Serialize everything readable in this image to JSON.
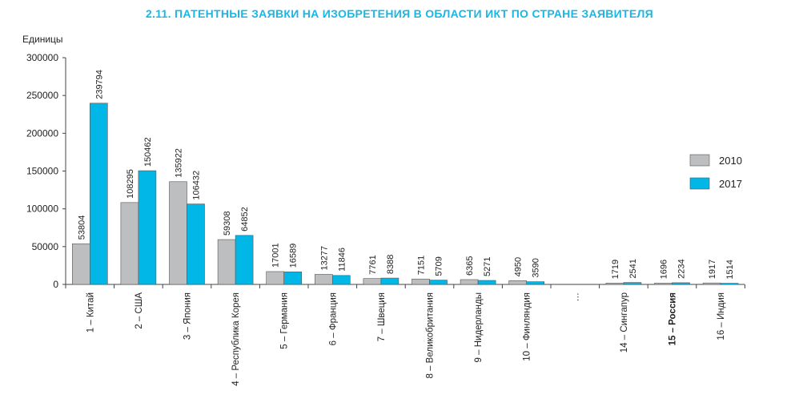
{
  "chart_data": {
    "type": "bar",
    "title": "2.11. ПАТЕНТНЫЕ ЗАЯВКИ НА ИЗОБРЕТЕНИЯ В ОБЛАСТИ ИКТ ПО СТРАНЕ ЗАЯВИТЕЛЯ",
    "ylabel": "Единицы",
    "ylim": [
      0,
      300000
    ],
    "yticks": [
      "0",
      "50000",
      "100000",
      "150000",
      "200000",
      "250000",
      "300000"
    ],
    "ytick_values": [
      0,
      50000,
      100000,
      150000,
      200000,
      250000,
      300000
    ],
    "categories": [
      "1 – Китай",
      "2 – США",
      "3 – Япония",
      "4 – Республика Корея",
      "5 – Германия",
      "6 – Франция",
      "7 – Швеция",
      "8 – Великобритания",
      "9 – Нидерланды",
      "10 – Финляндия",
      "…",
      "14 – Сингапур",
      "15 – Россия",
      "16 – Индия"
    ],
    "bold_category": "15 – Россия",
    "series": [
      {
        "name": "2010",
        "color": "#bcbec0",
        "values": [
          53804,
          108295,
          135922,
          59308,
          17001,
          13277,
          7761,
          7151,
          6365,
          4950,
          null,
          1719,
          1696,
          1917
        ]
      },
      {
        "name": "2017",
        "color": "#00b7e8",
        "values": [
          239794,
          150462,
          106432,
          64852,
          16589,
          11846,
          8388,
          5709,
          5271,
          3590,
          null,
          2541,
          2234,
          1514
        ]
      }
    ],
    "legend_position": "right",
    "grid": false
  }
}
